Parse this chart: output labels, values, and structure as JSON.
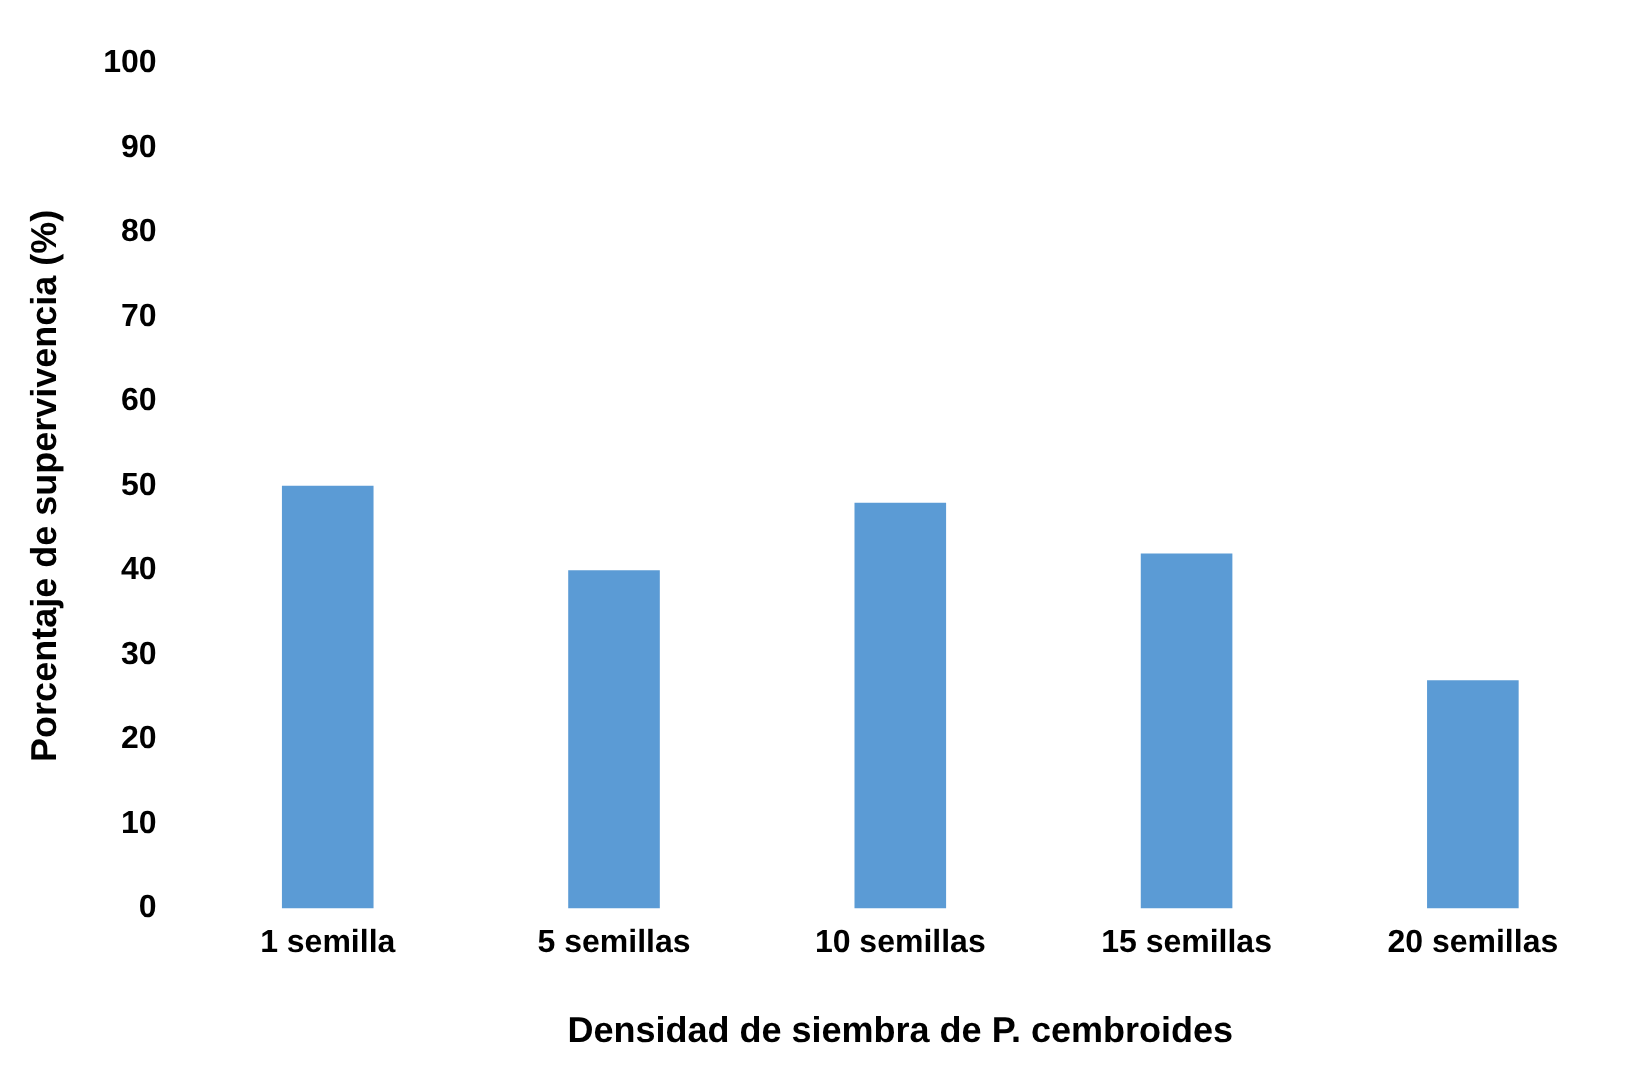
{
  "chart_data": {
    "type": "bar",
    "xlabel": "Densidad de siembra de P. cembroides",
    "ylabel": "Porcentaje de supervivencia (%)",
    "categories": [
      "1 semilla",
      "5 semillas",
      "10 semillas",
      "15 semillas",
      "20 semillas"
    ],
    "values": [
      50,
      40,
      48,
      42,
      27
    ],
    "color": "#5b9bd5",
    "ylim": [
      0,
      100
    ],
    "yticks": [
      0,
      10,
      20,
      30,
      40,
      50,
      60,
      70,
      80,
      90,
      100
    ],
    "grid": false,
    "legend": false
  }
}
